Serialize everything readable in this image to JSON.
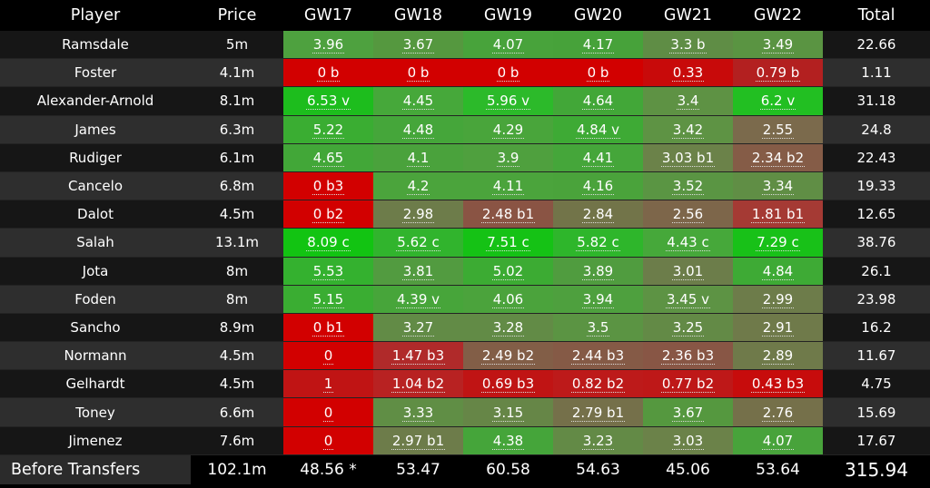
{
  "headers": [
    "Player",
    "Price",
    "GW17",
    "GW18",
    "GW19",
    "GW20",
    "GW21",
    "GW22",
    "Total"
  ],
  "colors": {
    "best": "#1ec31e",
    "good": "#4fa83a",
    "mid": "#6e7f4a",
    "low": "#8a5a44",
    "worst": "#d20000"
  },
  "rows": [
    {
      "player": "Ramsdale",
      "price": "5m",
      "gws": [
        {
          "text": "3.96",
          "color": "#4ea13f"
        },
        {
          "text": "3.67",
          "color": "#55983f"
        },
        {
          "text": "4.07",
          "color": "#48a33b"
        },
        {
          "text": "4.17",
          "color": "#47a23a"
        },
        {
          "text": "3.3 b",
          "color": "#5f8d45"
        },
        {
          "text": "3.49",
          "color": "#5a9442"
        }
      ],
      "total": "22.66"
    },
    {
      "player": "Foster",
      "price": "4.1m",
      "gws": [
        {
          "text": "0 b",
          "color": "#d20000"
        },
        {
          "text": "0 b",
          "color": "#d20000"
        },
        {
          "text": "0 b",
          "color": "#d20000"
        },
        {
          "text": "0 b",
          "color": "#d20000"
        },
        {
          "text": "0.33",
          "color": "#c80a0a"
        },
        {
          "text": "0.79 b",
          "color": "#b32020"
        }
      ],
      "total": "1.11"
    },
    {
      "player": "Alexander-Arnold",
      "price": "8.1m",
      "gws": [
        {
          "text": "6.53 v",
          "color": "#1dbd1d"
        },
        {
          "text": "4.45",
          "color": "#46a83a"
        },
        {
          "text": "5.96 v",
          "color": "#2cba2a"
        },
        {
          "text": "4.64",
          "color": "#42a738"
        },
        {
          "text": "3.4",
          "color": "#5e9244"
        },
        {
          "text": "6.2 v",
          "color": "#22bf22"
        }
      ],
      "total": "31.18"
    },
    {
      "player": "James",
      "price": "6.3m",
      "gws": [
        {
          "text": "5.22",
          "color": "#3aad32"
        },
        {
          "text": "4.48",
          "color": "#45a63a"
        },
        {
          "text": "4.29",
          "color": "#49a53b"
        },
        {
          "text": "4.84 v",
          "color": "#3eaa35"
        },
        {
          "text": "3.42",
          "color": "#5e9344"
        },
        {
          "text": "2.55",
          "color": "#7b6a4c"
        }
      ],
      "total": "24.8"
    },
    {
      "player": "Rudiger",
      "price": "6.1m",
      "gws": [
        {
          "text": "4.65",
          "color": "#42a738"
        },
        {
          "text": "4.1",
          "color": "#4aa23c"
        },
        {
          "text": "3.9",
          "color": "#4fa03e"
        },
        {
          "text": "4.41",
          "color": "#45a63a"
        },
        {
          "text": "3.03 b1",
          "color": "#6b8249"
        },
        {
          "text": "2.34 b2",
          "color": "#855c47"
        }
      ],
      "total": "22.43"
    },
    {
      "player": "Cancelo",
      "price": "6.8m",
      "gws": [
        {
          "text": "0 b3",
          "color": "#d20000"
        },
        {
          "text": "4.2",
          "color": "#4ba43c"
        },
        {
          "text": "4.11",
          "color": "#4ba43c"
        },
        {
          "text": "4.16",
          "color": "#4aa33b"
        },
        {
          "text": "3.52",
          "color": "#5a9543"
        },
        {
          "text": "3.34",
          "color": "#608e45"
        }
      ],
      "total": "19.33"
    },
    {
      "player": "Dalot",
      "price": "4.5m",
      "gws": [
        {
          "text": "0 b2",
          "color": "#d20000"
        },
        {
          "text": "2.98",
          "color": "#6d7c4a"
        },
        {
          "text": "2.48 b1",
          "color": "#8a5444"
        },
        {
          "text": "2.84",
          "color": "#727449"
        },
        {
          "text": "2.56",
          "color": "#7d664a"
        },
        {
          "text": "1.81 b1",
          "color": "#a53a34"
        }
      ],
      "total": "12.65"
    },
    {
      "player": "Salah",
      "price": "13.1m",
      "gws": [
        {
          "text": "8.09 c",
          "color": "#12c412"
        },
        {
          "text": "5.62 c",
          "color": "#31b42d"
        },
        {
          "text": "7.51 c",
          "color": "#15c215"
        },
        {
          "text": "5.82 c",
          "color": "#2eb62b"
        },
        {
          "text": "4.43 c",
          "color": "#46a83a"
        },
        {
          "text": "7.29 c",
          "color": "#18c118"
        }
      ],
      "total": "38.76"
    },
    {
      "player": "Jota",
      "price": "8m",
      "gws": [
        {
          "text": "5.53",
          "color": "#34b12f"
        },
        {
          "text": "3.81",
          "color": "#529b40"
        },
        {
          "text": "5.02",
          "color": "#3cab33"
        },
        {
          "text": "3.89",
          "color": "#509c3f"
        },
        {
          "text": "3.01",
          "color": "#6c7d4a"
        },
        {
          "text": "4.84",
          "color": "#3eaa35"
        }
      ],
      "total": "26.1"
    },
    {
      "player": "Foden",
      "price": "8m",
      "gws": [
        {
          "text": "5.15",
          "color": "#3aad32"
        },
        {
          "text": "4.39 v",
          "color": "#47a53a"
        },
        {
          "text": "4.06",
          "color": "#4ba33c"
        },
        {
          "text": "3.94",
          "color": "#4ea03e"
        },
        {
          "text": "3.45 v",
          "color": "#5d9344"
        },
        {
          "text": "2.99",
          "color": "#6d7c4a"
        }
      ],
      "total": "23.98"
    },
    {
      "player": "Sancho",
      "price": "8.9m",
      "gws": [
        {
          "text": "0 b1",
          "color": "#d20000"
        },
        {
          "text": "3.27",
          "color": "#628b46"
        },
        {
          "text": "3.28",
          "color": "#628b46"
        },
        {
          "text": "3.5",
          "color": "#5b9443"
        },
        {
          "text": "3.25",
          "color": "#638a46"
        },
        {
          "text": "2.91",
          "color": "#6f7a4a"
        }
      ],
      "total": "16.2"
    },
    {
      "player": "Normann",
      "price": "4.5m",
      "gws": [
        {
          "text": "0",
          "color": "#d20000"
        },
        {
          "text": "1.47 b3",
          "color": "#b02a2a"
        },
        {
          "text": "2.49 b2",
          "color": "#825e47"
        },
        {
          "text": "2.44 b3",
          "color": "#855a46"
        },
        {
          "text": "2.36 b3",
          "color": "#885645"
        },
        {
          "text": "2.89",
          "color": "#6f7a4a"
        }
      ],
      "total": "11.67"
    },
    {
      "player": "Gelhardt",
      "price": "4.5m",
      "gws": [
        {
          "text": "1",
          "color": "#c01414"
        },
        {
          "text": "1.04 b2",
          "color": "#b82222"
        },
        {
          "text": "0.69 b3",
          "color": "#c01414"
        },
        {
          "text": "0.82 b2",
          "color": "#bd1a1a"
        },
        {
          "text": "0.77 b2",
          "color": "#be1818"
        },
        {
          "text": "0.43 b3",
          "color": "#c70c0c"
        }
      ],
      "total": "4.75"
    },
    {
      "player": "Toney",
      "price": "6.6m",
      "gws": [
        {
          "text": "0",
          "color": "#d20000"
        },
        {
          "text": "3.33",
          "color": "#608e45"
        },
        {
          "text": "3.15",
          "color": "#668647"
        },
        {
          "text": "2.79 b1",
          "color": "#75704a"
        },
        {
          "text": "3.67",
          "color": "#55983f"
        },
        {
          "text": "2.76",
          "color": "#75704a"
        }
      ],
      "total": "15.69"
    },
    {
      "player": "Jimenez",
      "price": "7.6m",
      "gws": [
        {
          "text": "0",
          "color": "#d20000"
        },
        {
          "text": "2.97 b1",
          "color": "#6d7c4a"
        },
        {
          "text": "4.38",
          "color": "#45a53a"
        },
        {
          "text": "3.23",
          "color": "#638a46"
        },
        {
          "text": "3.03",
          "color": "#6b8249"
        },
        {
          "text": "4.07",
          "color": "#48a33b"
        }
      ],
      "total": "17.67"
    }
  ],
  "footer": {
    "label": "Before Transfers",
    "price": "102.1m",
    "gws": [
      "48.56 *",
      "53.47",
      "60.58",
      "54.63",
      "45.06",
      "53.64"
    ],
    "total": "315.94"
  }
}
